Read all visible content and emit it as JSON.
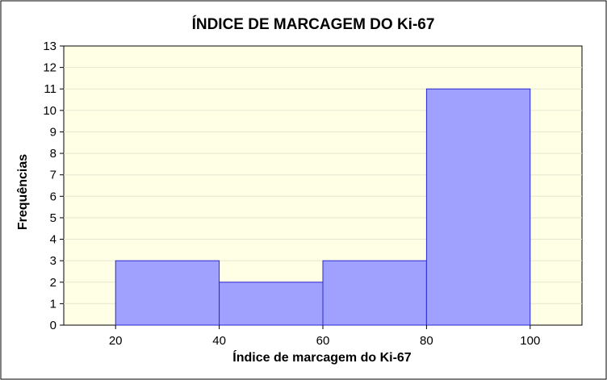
{
  "chart_data": {
    "type": "bar",
    "title": "ÍNDICE DE MARCAGEM DO Ki-67",
    "xlabel": "Índice de marcagem do Ki-67",
    "ylabel": "Frequências",
    "xlim": [
      10,
      110
    ],
    "ylim": [
      0,
      13
    ],
    "x_ticks": [
      20,
      40,
      60,
      80,
      100
    ],
    "y_ticks": [
      0,
      1,
      2,
      3,
      4,
      5,
      6,
      7,
      8,
      9,
      10,
      11,
      12,
      13
    ],
    "bins": [
      {
        "from": 20,
        "to": 40,
        "value": 3
      },
      {
        "from": 40,
        "to": 60,
        "value": 2
      },
      {
        "from": 60,
        "to": 80,
        "value": 3
      },
      {
        "from": 80,
        "to": 100,
        "value": 11
      }
    ],
    "grid": true,
    "colors": {
      "bar_fill": "#a0a0ff",
      "bar_stroke": "#2a2ad0",
      "plot_background": "#ffffe6",
      "gridline": "#e6e6d2"
    }
  }
}
